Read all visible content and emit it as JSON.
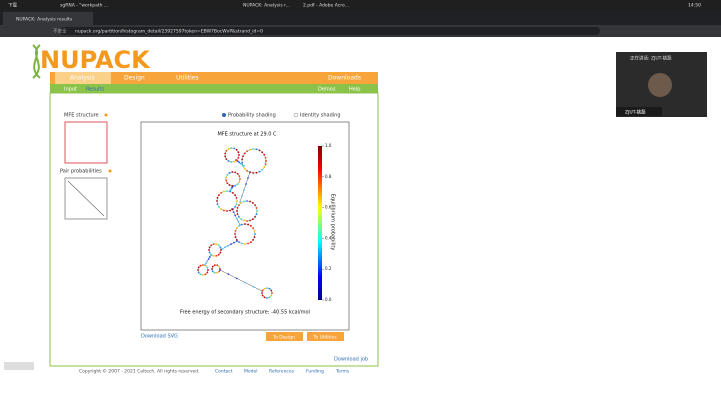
{
  "taskbar": {
    "items": [
      "下载",
      "sgRNA - \"workpath ...",
      "NUPACK: Analysis r...",
      "2.pdf - Adobe Acro..."
    ],
    "time": "14:50"
  },
  "browser": {
    "tab": "NUPACK: Analysis results",
    "security": "不安全",
    "url": "nupack.org/partition/histogram_detail/23927597token=EBW7BocWvP&strand_id=0"
  },
  "header": {
    "logo": "NUPACK",
    "nav": [
      "Analysis",
      "Design",
      "Utilities",
      "Downloads"
    ],
    "subnav_left": [
      "Input",
      "Results"
    ],
    "subnav_right": [
      "Demos",
      "Help"
    ]
  },
  "sidebar": {
    "mfe": "MFE structure",
    "pair": "Pair probabilities"
  },
  "shading": [
    "Probability shading",
    "Identity shading"
  ],
  "figure": {
    "title": "MFE structure at 29.0 C",
    "colorbar_label": "Equilibrium probability",
    "lim": [
      0,
      1
    ],
    "ticks": [
      {
        "value": 1,
        "label": "1.0"
      },
      {
        "value": 0.8,
        "label": "0.8"
      },
      {
        "value": 0.6,
        "label": "0.6"
      },
      {
        "value": 0.4,
        "label": "0.4"
      },
      {
        "value": 0.2,
        "label": "0.2"
      },
      {
        "value": 0,
        "label": "0.0"
      }
    ],
    "energy": "Free energy of secondary structure: -40.55 kcal/mol"
  },
  "links": {
    "svg": "Download SVG",
    "design": "To Design",
    "utilities": "To Utilities",
    "job": "Download job"
  },
  "footer": {
    "copyright": "Copyright © 2007 - 2021 Caltech. All rights reserved.",
    "links": [
      "Contact",
      "Model",
      "References",
      "Funding",
      "Terms"
    ]
  },
  "video": {
    "speaking": "正在讲话: ZJUT-姚磊",
    "name": "ZJUT-姚磊"
  }
}
